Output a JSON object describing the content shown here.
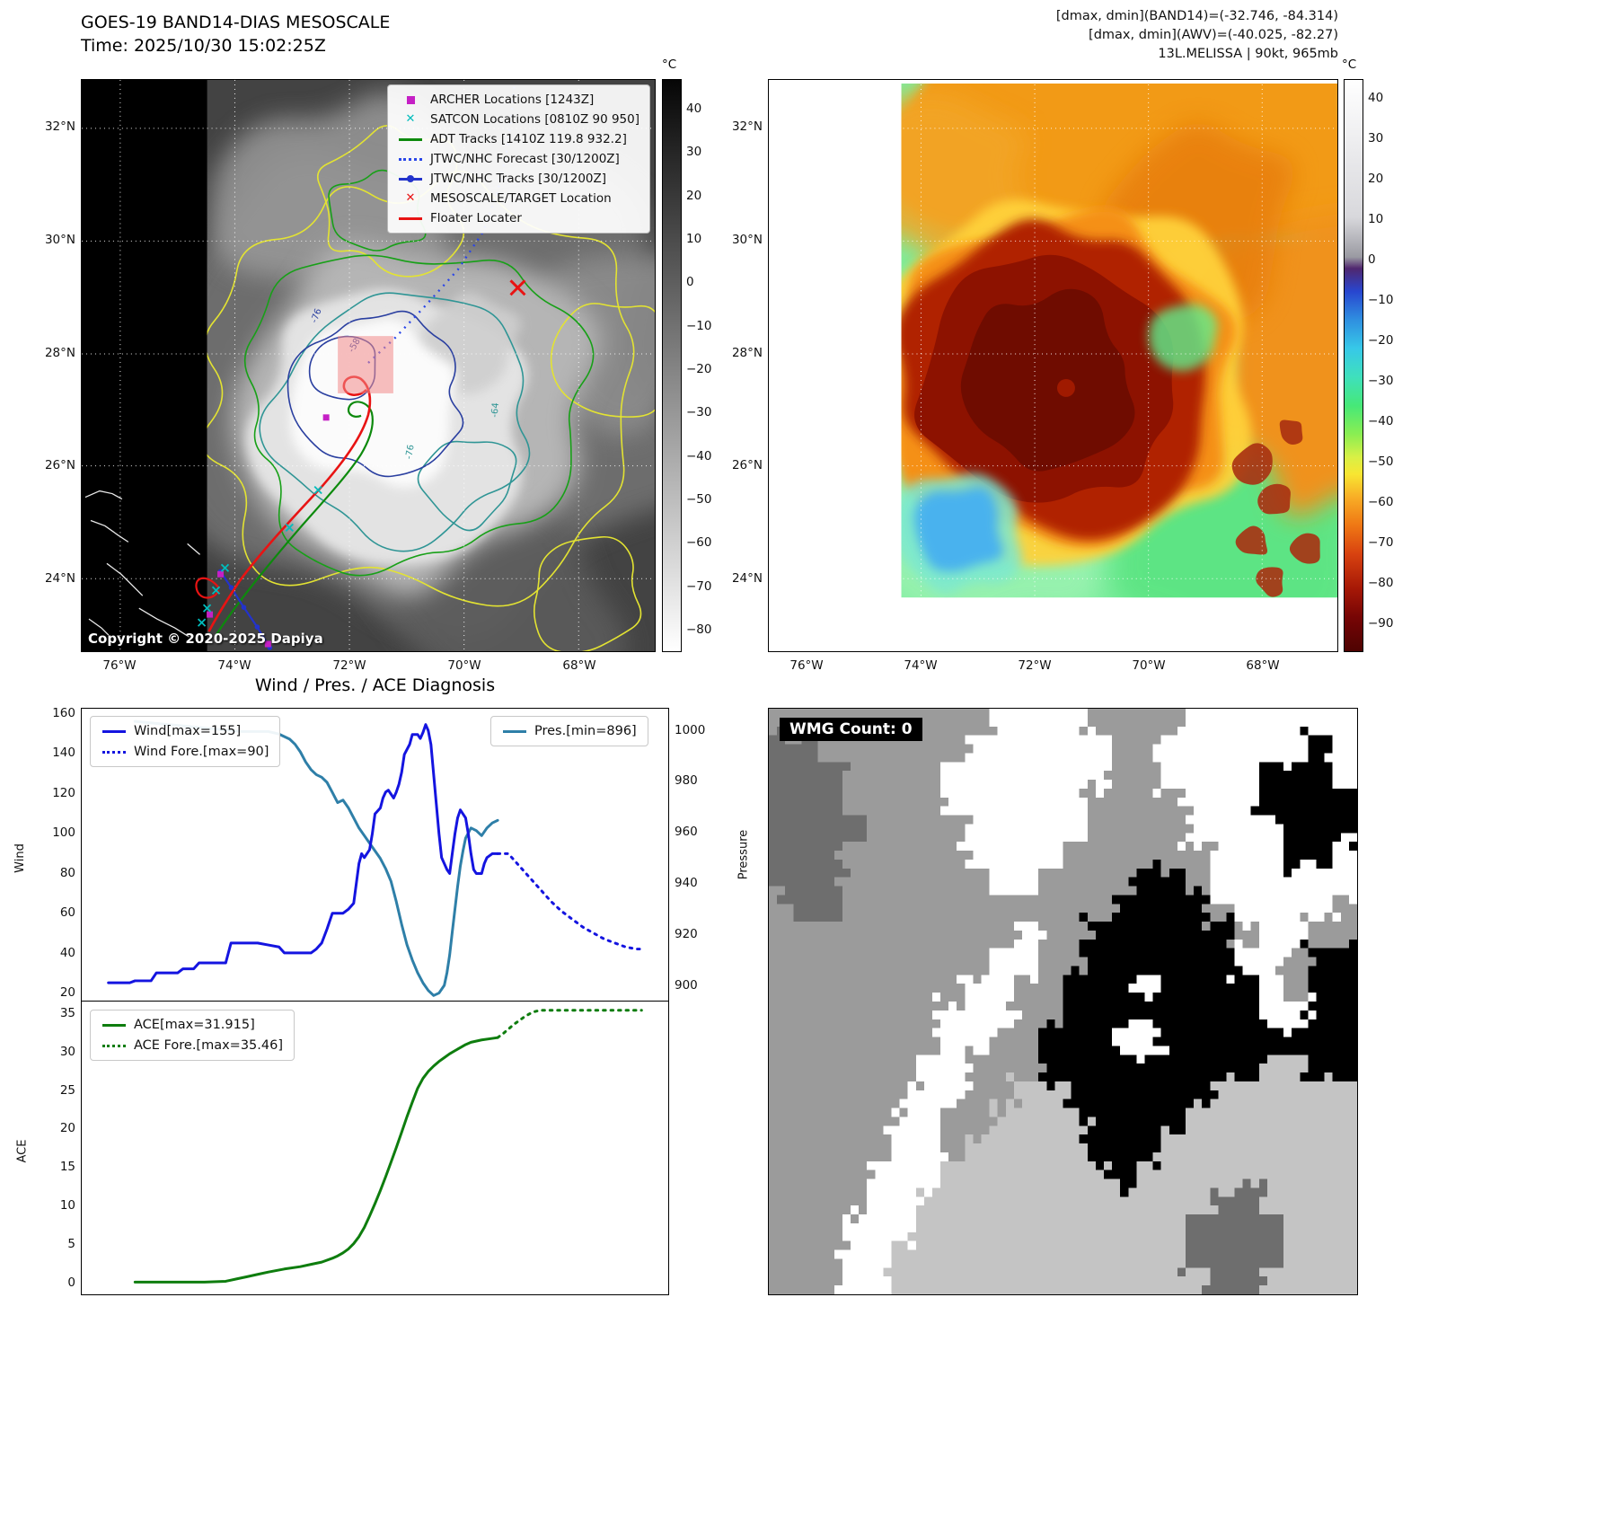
{
  "panel_tl": {
    "title": "GOES-19 BAND14-DIAS MESOSCALE",
    "subtitle": "Time: 2025/10/30 15:02:25Z",
    "copyright": "Copyright © 2020-2025 Dapiya",
    "lat_ticks": [
      "32°N",
      "30°N",
      "28°N",
      "26°N",
      "24°N"
    ],
    "lon_ticks": [
      "76°W",
      "74°W",
      "72°W",
      "70°W",
      "68°W"
    ],
    "colorbar": {
      "unit": "°C",
      "ticks": [
        "40",
        "30",
        "20",
        "10",
        "0",
        "−10",
        "−20",
        "−30",
        "−40",
        "−50",
        "−60",
        "−70",
        "−80"
      ]
    },
    "contour_labels": [
      "-76",
      "-58",
      "-64",
      "-76"
    ],
    "legend": [
      {
        "label": "ARCHER Locations [1243Z]",
        "marker": "square",
        "color": "#c520c5"
      },
      {
        "label": "SATCON Locations [0810Z 90 950]",
        "marker": "x",
        "color": "#00bcbc"
      },
      {
        "label": "ADT Tracks [1410Z 119.8 932.2]",
        "marker": "line",
        "color": "#0d8a0d"
      },
      {
        "label": "JTWC/NHC Forecast [30/1200Z]",
        "marker": "dotted",
        "color": "#2a46e8"
      },
      {
        "label": "JTWC/NHC Tracks [30/1200Z]",
        "marker": "line-marker",
        "color": "#2333cc"
      },
      {
        "label": "MESOSCALE/TARGET Location",
        "marker": "x",
        "color": "#e81313"
      },
      {
        "label": "Floater Locater",
        "marker": "line",
        "color": "#e81313"
      }
    ]
  },
  "panel_tr": {
    "info_lines": [
      "[dmax, dmin](BAND14)=(-32.746, -84.314)",
      "[dmax, dmin](AWV)=(-40.025, -82.27)",
      "13L.MELISSA | 90kt, 965mb"
    ],
    "lat_ticks": [
      "32°N",
      "30°N",
      "28°N",
      "26°N",
      "24°N"
    ],
    "lon_ticks": [
      "76°W",
      "74°W",
      "72°W",
      "70°W",
      "68°W"
    ],
    "colorbar": {
      "unit": "°C",
      "ticks": [
        "40",
        "30",
        "20",
        "10",
        "0",
        "−10",
        "−20",
        "−30",
        "−40",
        "−50",
        "−60",
        "−70",
        "−80",
        "−90"
      ]
    }
  },
  "chart_data": [
    {
      "type": "line",
      "title": "Wind / Pres. / ACE Diagnosis",
      "xlabel": "",
      "ylabel": "Wind",
      "y2label": "Pressure",
      "ylim": [
        20,
        160
      ],
      "y2lim": [
        896,
        1005
      ],
      "yticks": [
        "160",
        "140",
        "120",
        "100",
        "80",
        "60",
        "40",
        "20"
      ],
      "y2ticks": [
        "1000",
        "980",
        "960",
        "940",
        "920",
        "900"
      ],
      "grid": false,
      "series": [
        {
          "name": "Wind[max=155]",
          "color": "#1414e0",
          "style": "solid",
          "axis": "y",
          "points": [
            [
              0,
              25
            ],
            [
              4,
              25
            ],
            [
              5,
              26
            ],
            [
              8,
              26
            ],
            [
              9,
              30
            ],
            [
              13,
              30
            ],
            [
              14,
              32
            ],
            [
              16,
              32
            ],
            [
              17,
              35
            ],
            [
              22,
              35
            ],
            [
              23,
              45
            ],
            [
              28,
              45
            ],
            [
              30,
              44
            ],
            [
              32,
              43
            ],
            [
              33,
              40
            ],
            [
              38,
              40
            ],
            [
              39,
              42
            ],
            [
              40,
              45
            ],
            [
              41,
              52
            ],
            [
              42,
              60
            ],
            [
              44,
              60
            ],
            [
              45,
              62
            ],
            [
              46,
              65
            ],
            [
              47,
              85
            ],
            [
              47.5,
              90
            ],
            [
              48,
              88
            ],
            [
              49,
              92
            ],
            [
              49.5,
              100
            ],
            [
              50,
              110
            ],
            [
              51,
              113
            ],
            [
              51.5,
              118
            ],
            [
              52,
              121
            ],
            [
              52.5,
              122
            ],
            [
              53,
              120
            ],
            [
              53.5,
              118
            ],
            [
              54,
              121
            ],
            [
              54.5,
              125
            ],
            [
              55,
              131
            ],
            [
              55.5,
              140
            ],
            [
              56.5,
              145
            ],
            [
              57,
              150
            ],
            [
              58,
              150
            ],
            [
              58.5,
              148
            ],
            [
              59,
              151
            ],
            [
              59.5,
              155
            ],
            [
              60,
              152
            ],
            [
              60.5,
              145
            ],
            [
              61,
              130
            ],
            [
              61.5,
              115
            ],
            [
              62,
              100
            ],
            [
              62.5,
              88
            ],
            [
              63,
              85
            ],
            [
              63.5,
              82
            ],
            [
              64,
              80
            ],
            [
              64.5,
              90
            ],
            [
              65,
              100
            ],
            [
              65.5,
              108
            ],
            [
              66,
              112
            ],
            [
              66.5,
              110
            ],
            [
              67,
              108
            ],
            [
              67.5,
              100
            ],
            [
              68,
              90
            ],
            [
              68.5,
              82
            ],
            [
              69,
              80
            ],
            [
              70,
              80
            ],
            [
              70.5,
              85
            ],
            [
              71,
              88
            ],
            [
              72,
              90
            ],
            [
              73,
              90
            ]
          ]
        },
        {
          "name": "Wind Fore.[max=90]",
          "color": "#1414e0",
          "style": "dotted",
          "axis": "y",
          "points": [
            [
              73,
              90
            ],
            [
              75,
              90
            ],
            [
              77,
              84
            ],
            [
              79,
              78
            ],
            [
              81,
              72
            ],
            [
              83,
              66
            ],
            [
              85,
              61
            ],
            [
              87,
              57
            ],
            [
              89,
              53
            ],
            [
              91,
              50
            ],
            [
              93,
              47
            ],
            [
              95,
              45
            ],
            [
              97,
              43
            ],
            [
              99,
              42
            ],
            [
              100,
              42
            ]
          ]
        },
        {
          "name": "Pres.[min=896]",
          "color": "#2e7fa8",
          "style": "solid",
          "axis": "y2",
          "points": [
            [
              5,
              1004
            ],
            [
              10,
              1003
            ],
            [
              15,
              1002
            ],
            [
              20,
              1001
            ],
            [
              25,
              1000
            ],
            [
              30,
              1000
            ],
            [
              32,
              999
            ],
            [
              34,
              997
            ],
            [
              35,
              995
            ],
            [
              36,
              992
            ],
            [
              37,
              988
            ],
            [
              38,
              985
            ],
            [
              39,
              983
            ],
            [
              40,
              982
            ],
            [
              41,
              980
            ],
            [
              42,
              976
            ],
            [
              43,
              972
            ],
            [
              44,
              973
            ],
            [
              45,
              970
            ],
            [
              46,
              966
            ],
            [
              47,
              962
            ],
            [
              48,
              959
            ],
            [
              49,
              956
            ],
            [
              50,
              953
            ],
            [
              51,
              950
            ],
            [
              52,
              946
            ],
            [
              53,
              941
            ],
            [
              54,
              933
            ],
            [
              55,
              924
            ],
            [
              56,
              916
            ],
            [
              57,
              910
            ],
            [
              58,
              905
            ],
            [
              59,
              901
            ],
            [
              60,
              898
            ],
            [
              61,
              896
            ],
            [
              62,
              897
            ],
            [
              63,
              900
            ],
            [
              63.5,
              905
            ],
            [
              64,
              912
            ],
            [
              64.5,
              921
            ],
            [
              65,
              930
            ],
            [
              65.5,
              939
            ],
            [
              66,
              947
            ],
            [
              66.5,
              953
            ],
            [
              67,
              958
            ],
            [
              68,
              962
            ],
            [
              69,
              961
            ],
            [
              70,
              959
            ],
            [
              71,
              962
            ],
            [
              72,
              964
            ],
            [
              73,
              965
            ]
          ]
        }
      ]
    },
    {
      "type": "line",
      "ylabel": "ACE",
      "ylim": [
        0,
        35.46
      ],
      "yticks": [
        "35",
        "30",
        "25",
        "20",
        "15",
        "10",
        "5",
        "0"
      ],
      "grid": false,
      "series": [
        {
          "name": "ACE[max=31.915]",
          "color": "#0e7d0e",
          "style": "solid",
          "axis": "y",
          "points": [
            [
              5,
              0.1
            ],
            [
              12,
              0.1
            ],
            [
              18,
              0.1
            ],
            [
              22,
              0.2
            ],
            [
              24,
              0.5
            ],
            [
              26,
              0.8
            ],
            [
              28,
              1.1
            ],
            [
              30,
              1.4
            ],
            [
              33,
              1.8
            ],
            [
              36,
              2.1
            ],
            [
              38,
              2.4
            ],
            [
              40,
              2.7
            ],
            [
              42,
              3.2
            ],
            [
              43,
              3.5
            ],
            [
              44,
              3.9
            ],
            [
              45,
              4.4
            ],
            [
              46,
              5.1
            ],
            [
              47,
              6.0
            ],
            [
              48,
              7.2
            ],
            [
              49,
              8.7
            ],
            [
              50,
              10.3
            ],
            [
              51,
              12.0
            ],
            [
              52,
              13.8
            ],
            [
              53,
              15.7
            ],
            [
              54,
              17.6
            ],
            [
              55,
              19.6
            ],
            [
              56,
              21.6
            ],
            [
              57,
              23.5
            ],
            [
              58,
              25.3
            ],
            [
              59,
              26.6
            ],
            [
              60,
              27.5
            ],
            [
              61,
              28.2
            ],
            [
              62,
              28.8
            ],
            [
              63,
              29.3
            ],
            [
              64,
              29.8
            ],
            [
              65,
              30.2
            ],
            [
              66,
              30.6
            ],
            [
              67,
              31.0
            ],
            [
              68,
              31.3
            ],
            [
              70,
              31.6
            ],
            [
              72,
              31.8
            ],
            [
              73,
              31.9
            ]
          ]
        },
        {
          "name": "ACE Fore.[max=35.46]",
          "color": "#0e7d0e",
          "style": "dotted",
          "axis": "y",
          "points": [
            [
              73,
              31.9
            ],
            [
              74,
              32.4
            ],
            [
              75,
              33.0
            ],
            [
              76,
              33.6
            ],
            [
              77,
              34.1
            ],
            [
              78,
              34.6
            ],
            [
              79,
              35.0
            ],
            [
              80,
              35.3
            ],
            [
              81,
              35.46
            ],
            [
              84,
              35.46
            ],
            [
              88,
              35.46
            ],
            [
              92,
              35.46
            ],
            [
              96,
              35.46
            ],
            [
              100,
              35.46
            ]
          ]
        }
      ]
    }
  ],
  "panel_br": {
    "wmg_label": "WMG Count: 0",
    "palette": {
      "0": "#ffffff",
      "1": "#c4c4c4",
      "2": "#9b9b9b",
      "3": "#6e6e6e",
      "4": "#000000"
    },
    "grid": [
      "222222222000022220000000",
      "332222220000002200000040",
      "333222200000002200004440",
      "333222200000022220004444",
      "333322220000022220000444",
      "333222220000222222000440",
      "333222222002222442000000",
      "233222222222224444200002",
      "222222222202244444420022",
      "222222222002244444400244",
      "222222220022444044440244",
      "222222200022444444440044",
      "222222200224440044444444",
      "222222002224444444441144",
      "222222002211444444111111",
      "222220022111144441111111",
      "222220021111144411111111",
      "222200011111114111111111",
      "222200111111111111331111",
      "222000111111111113333111",
      "222001111111111113333111",
      "222001111111111111331111"
    ]
  }
}
